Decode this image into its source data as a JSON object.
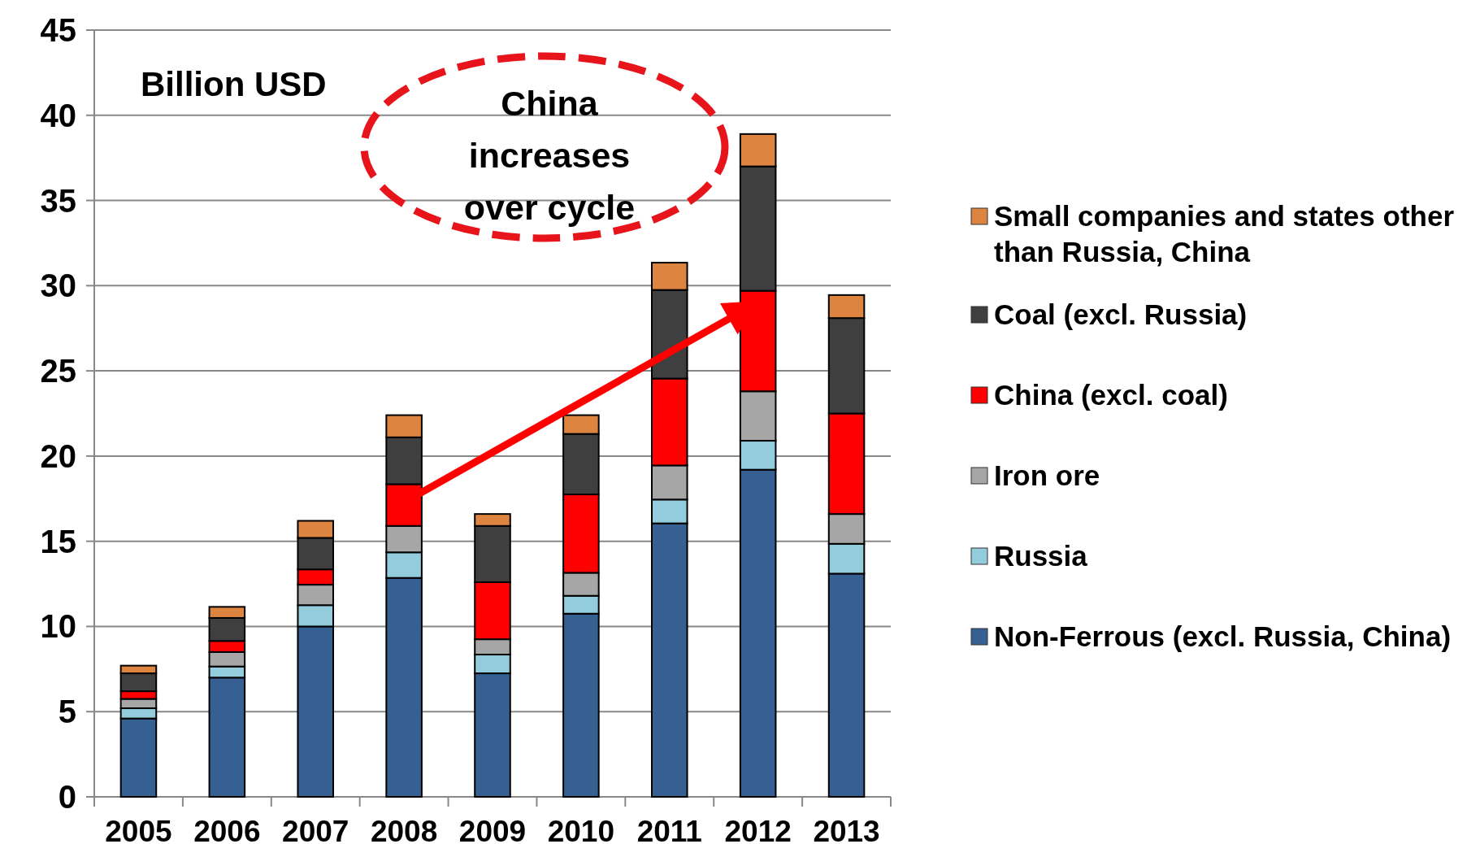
{
  "chart_data": {
    "type": "bar",
    "stacked": true,
    "categories": [
      "2005",
      "2006",
      "2007",
      "2008",
      "2009",
      "2010",
      "2011",
      "2012",
      "2013"
    ],
    "series": [
      {
        "name": "Non-Ferrous (excl. Russia, China)",
        "color": "#376092",
        "values": [
          4.6,
          7.0,
          10.0,
          12.85,
          7.25,
          10.75,
          16.05,
          19.2,
          13.1
        ]
      },
      {
        "name": "Russia",
        "color": "#93cddd",
        "values": [
          0.6,
          0.65,
          1.25,
          1.5,
          1.1,
          1.05,
          1.4,
          1.7,
          1.75
        ]
      },
      {
        "name": "Iron ore",
        "color": "#a6a6a6",
        "values": [
          0.55,
          0.85,
          1.2,
          1.55,
          0.9,
          1.35,
          2.0,
          2.9,
          1.75
        ]
      },
      {
        "name": "China (excl. coal)",
        "color": "#ff0000",
        "values": [
          0.45,
          0.65,
          0.9,
          2.45,
          3.35,
          4.6,
          5.1,
          5.9,
          5.9
        ]
      },
      {
        "name": "Coal (excl. Russia)",
        "color": "#3f3f3f",
        "values": [
          1.05,
          1.35,
          1.85,
          2.75,
          3.3,
          3.55,
          5.2,
          7.3,
          5.6
        ]
      },
      {
        "name": "Small companies and states other than Russia, China",
        "color": "#dc8440",
        "values": [
          0.45,
          0.65,
          1.0,
          1.3,
          0.7,
          1.1,
          1.6,
          1.9,
          1.35
        ]
      }
    ],
    "ylim": [
      0,
      45
    ],
    "yticks": [
      0,
      5,
      10,
      15,
      20,
      25,
      30,
      35,
      40,
      45
    ],
    "grid": "y",
    "legend": "right",
    "annotations": [
      "Billion USD",
      "China increases over cycle"
    ]
  }
}
